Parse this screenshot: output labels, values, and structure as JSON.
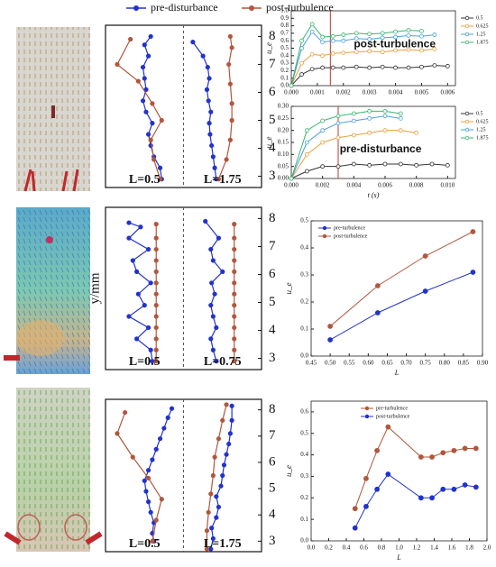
{
  "legend": [
    {
      "name": "pre-disturbance",
      "color": "#2233cc"
    },
    {
      "name": "post-turbulence",
      "color": "#b0573d"
    }
  ],
  "chart_data": [
    {
      "type": "profile",
      "ylim": [
        2.6,
        8.4
      ],
      "yticks": [
        3,
        4,
        5,
        6,
        7,
        8
      ],
      "subpanels": [
        {
          "label": "L=0.5",
          "series": [
            {
              "color": "#2233cc",
              "x": [
                0.72,
                0.7,
                0.62,
                0.58,
                0.55,
                0.6,
                0.52,
                0.48,
                0.52,
                0.5,
                0.48,
                0.55,
                0.5,
                0.58
              ],
              "y": [
                2.9,
                3.3,
                3.7,
                4.1,
                4.5,
                4.9,
                5.3,
                5.7,
                6.1,
                6.5,
                6.9,
                7.3,
                7.7,
                8.0
              ]
            },
            {
              "color": "#b0573d",
              "x": [
                0.7,
                0.62,
                0.58,
                0.72,
                0.6,
                0.42,
                0.15,
                0.32
              ],
              "y": [
                2.9,
                3.6,
                4.3,
                5.0,
                5.6,
                6.4,
                7.0,
                7.9
              ]
            }
          ]
        },
        {
          "label": "L=1.75",
          "series": [
            {
              "color": "#2233cc",
              "x": [
                0.42,
                0.4,
                0.38,
                0.36,
                0.34,
                0.33,
                0.35,
                0.32,
                0.3,
                0.33,
                0.31,
                0.25,
                0.12
              ],
              "y": [
                2.9,
                3.3,
                3.7,
                4.1,
                4.5,
                4.9,
                5.3,
                5.7,
                6.1,
                6.5,
                6.9,
                7.3,
                7.8
              ]
            },
            {
              "color": "#b0573d",
              "x": [
                0.45,
                0.55,
                0.6,
                0.62,
                0.62,
                0.6,
                0.58,
                0.62,
                0.6
              ],
              "y": [
                2.9,
                3.6,
                4.3,
                5.0,
                5.6,
                6.3,
                7.0,
                7.6,
                8.0
              ]
            }
          ]
        }
      ]
    },
    {
      "type": "line",
      "annotation": "post-turbulence",
      "ylabel": "u_e",
      "marker_x": 0.0015,
      "marker_color": "#c0392b",
      "xlim": [
        0,
        0.0063
      ],
      "ylim": [
        0,
        1.0
      ],
      "xticks": [
        {
          "value": 0,
          "label": "0.000"
        },
        0.001,
        0.002,
        0.003,
        0.004,
        0.005,
        0.006
      ],
      "yticks": [
        {
          "value": 0,
          "label": "0.0"
        },
        0.1,
        0.2,
        0.3,
        0.4,
        0.5,
        0.6,
        0.7,
        0.8,
        0.9,
        {
          "value": 1,
          "label": "1.0"
        }
      ],
      "x": [
        0,
        0.0004,
        0.0008,
        0.0012,
        0.0016,
        0.002,
        0.0025,
        0.003,
        0.0035,
        0.004,
        0.0045,
        0.005,
        0.0055,
        0.006
      ],
      "series": [
        {
          "name": "0.5",
          "color": "#333333",
          "values": [
            0,
            0.15,
            0.22,
            0.24,
            0.24,
            0.24,
            0.25,
            0.24,
            0.25,
            0.24,
            0.24,
            0.25,
            0.27,
            0.26
          ]
        },
        {
          "name": "0.625",
          "color": "#e8a040",
          "values": [
            0,
            0.3,
            0.42,
            0.4,
            0.43,
            0.44,
            0.45,
            0.46,
            0.45,
            0.47,
            0.48,
            0.47,
            0.49,
            null
          ]
        },
        {
          "name": "1.25",
          "color": "#4aa0e0",
          "values": [
            0,
            0.5,
            0.72,
            0.58,
            0.6,
            0.6,
            0.63,
            0.62,
            0.64,
            0.65,
            0.67,
            0.66,
            0.68,
            null
          ]
        },
        {
          "name": "1.875",
          "color": "#3cb371",
          "values": [
            0,
            0.6,
            0.82,
            0.65,
            0.66,
            0.68,
            0.7,
            0.69,
            0.7,
            0.72,
            0.74,
            0.73,
            null,
            null
          ]
        }
      ]
    },
    {
      "type": "line",
      "annotation": "pre-disturbance",
      "ylabel": "u_e",
      "xlabel": "t (s)",
      "marker_x": 0.003,
      "marker_color": "#c0392b",
      "xlim": [
        0,
        0.0105
      ],
      "ylim": [
        0,
        0.3
      ],
      "xticks": [
        {
          "value": 0,
          "label": "0.000"
        },
        0.002,
        0.004,
        0.006,
        0.008,
        {
          "value": 0.01,
          "label": "0.010"
        }
      ],
      "yticks": [
        {
          "value": 0,
          "label": "0.00"
        },
        0.05,
        {
          "value": 0.1,
          "label": "0.10"
        },
        0.15,
        {
          "value": 0.2,
          "label": "0.20"
        },
        0.25,
        {
          "value": 0.3,
          "label": "0.30"
        }
      ],
      "x": [
        0,
        0.001,
        0.002,
        0.003,
        0.004,
        0.005,
        0.006,
        0.007,
        0.008,
        0.009,
        0.01
      ],
      "series": [
        {
          "name": "0.5",
          "color": "#333333",
          "values": [
            0,
            0.03,
            0.05,
            0.05,
            0.06,
            0.055,
            0.06,
            0.06,
            0.055,
            0.06,
            0.055
          ]
        },
        {
          "name": "0.625",
          "color": "#e8a040",
          "values": [
            0,
            0.1,
            0.15,
            0.17,
            0.18,
            0.19,
            0.2,
            0.2,
            0.19,
            null,
            null
          ]
        },
        {
          "name": "1.25",
          "color": "#4aa0e0",
          "values": [
            0,
            0.15,
            0.2,
            0.23,
            0.24,
            0.25,
            0.26,
            0.25,
            null,
            null,
            null
          ]
        },
        {
          "name": "1.875",
          "color": "#3cb371",
          "values": [
            0,
            0.2,
            0.24,
            0.26,
            0.27,
            0.28,
            0.28,
            0.27,
            null,
            null,
            null
          ]
        }
      ]
    },
    {
      "type": "profile",
      "ylabel": "y/mm",
      "ylim": [
        2.6,
        8.4
      ],
      "yticks": [
        3,
        4,
        5,
        6,
        7,
        8
      ],
      "subpanels": [
        {
          "label": "L=0.5",
          "series": [
            {
              "color": "#2233cc",
              "x": [
                0.6,
                0.58,
                0.4,
                0.55,
                0.3,
                0.5,
                0.42,
                0.58,
                0.4,
                0.35,
                0.55,
                0.3,
                0.45,
                0.3
              ],
              "y": [
                2.9,
                3.3,
                3.7,
                4.1,
                4.5,
                4.9,
                5.3,
                5.7,
                6.1,
                6.5,
                6.9,
                7.3,
                7.7,
                7.85
              ]
            },
            {
              "color": "#b0573d",
              "x": [
                0.65,
                0.65,
                0.65,
                0.65,
                0.65,
                0.65,
                0.65,
                0.65,
                0.65,
                0.65,
                0.65,
                0.65,
                0.65
              ],
              "y": [
                2.9,
                3.3,
                3.7,
                4.1,
                4.5,
                4.9,
                5.3,
                5.7,
                6.1,
                6.5,
                6.9,
                7.3,
                7.8
              ]
            }
          ]
        },
        {
          "label": "L=0.75",
          "series": [
            {
              "color": "#2233cc",
              "x": [
                0.42,
                0.38,
                0.35,
                0.42,
                0.38,
                0.35,
                0.4,
                0.36,
                0.5,
                0.38,
                0.35,
                0.45,
                0.28
              ],
              "y": [
                2.9,
                3.3,
                3.7,
                4.1,
                4.5,
                4.9,
                5.3,
                5.7,
                6.1,
                6.5,
                6.9,
                7.3,
                7.9
              ]
            },
            {
              "color": "#b0573d",
              "x": [
                0.65,
                0.65,
                0.65,
                0.65,
                0.65,
                0.65,
                0.65,
                0.65,
                0.65,
                0.65,
                0.65,
                0.65,
                0.65
              ],
              "y": [
                2.9,
                3.3,
                3.7,
                4.1,
                4.5,
                4.9,
                5.3,
                5.7,
                6.1,
                6.5,
                6.9,
                7.3,
                7.8
              ]
            }
          ]
        }
      ]
    },
    {
      "type": "line",
      "xlabel": "L",
      "ylabel": "u_e",
      "legend": "upper left",
      "xlim": [
        0.45,
        0.9
      ],
      "ylim": [
        0,
        0.5
      ],
      "xticks": [
        0.45,
        {
          "value": 0.5,
          "label": "0.50"
        },
        0.55,
        {
          "value": 0.6,
          "label": "0.60"
        },
        0.65,
        {
          "value": 0.7,
          "label": "0.70"
        },
        0.75,
        {
          "value": 0.8,
          "label": "0.80"
        },
        0.85,
        {
          "value": 0.9,
          "label": "0.90"
        }
      ],
      "yticks": [
        {
          "value": 0,
          "label": "0.0"
        },
        0.1,
        0.2,
        0.3,
        0.4,
        0.5
      ],
      "x": [
        0.5,
        0.625,
        0.75,
        0.875
      ],
      "series": [
        {
          "name": "pre-turbulence",
          "color": "#2233cc",
          "values": [
            0.06,
            0.16,
            0.24,
            0.31
          ]
        },
        {
          "name": "post-turbulence",
          "color": "#b0573d",
          "values": [
            0.11,
            0.26,
            0.37,
            0.46
          ]
        }
      ]
    },
    {
      "type": "profile",
      "ylim": [
        2.6,
        8.4
      ],
      "yticks": [
        3,
        4,
        5,
        6,
        7,
        8
      ],
      "subpanels": [
        {
          "label": "L=0.5",
          "series": [
            {
              "color": "#2233cc",
              "x": [
                0.62,
                0.6,
                0.62,
                0.58,
                0.55,
                0.52,
                0.5,
                0.55,
                0.6,
                0.65,
                0.7,
                0.75,
                0.8,
                0.85
              ],
              "y": [
                3.0,
                3.3,
                3.7,
                4.1,
                4.5,
                4.9,
                5.3,
                5.7,
                6.1,
                6.5,
                6.9,
                7.3,
                7.7,
                8.05
              ]
            },
            {
              "color": "#b0573d",
              "x": [
                0.6,
                0.65,
                0.72,
                0.55,
                0.35,
                0.15,
                0.25
              ],
              "y": [
                3.0,
                3.8,
                4.6,
                5.4,
                6.2,
                7.1,
                7.9
              ]
            }
          ]
        },
        {
          "label": "L=1.75",
          "series": [
            {
              "color": "#2233cc",
              "x": [
                0.35,
                0.38,
                0.36,
                0.42,
                0.45,
                0.42,
                0.48,
                0.5,
                0.52,
                0.55,
                0.58,
                0.6,
                0.62,
                0.62
              ],
              "y": [
                2.7,
                3.1,
                3.5,
                3.9,
                4.3,
                4.7,
                5.1,
                5.5,
                5.9,
                6.3,
                6.7,
                7.1,
                7.6,
                8.15
              ]
            },
            {
              "color": "#b0573d",
              "x": [
                0.3,
                0.3,
                0.32,
                0.35,
                0.38,
                0.4,
                0.45,
                0.5,
                0.55
              ],
              "y": [
                2.7,
                3.4,
                4.1,
                4.8,
                5.5,
                6.2,
                6.9,
                7.6,
                8.2
              ]
            }
          ]
        }
      ]
    },
    {
      "type": "line",
      "xlabel": "L",
      "ylabel": "u_e",
      "legend": "upper center",
      "xlim": [
        0,
        2.0
      ],
      "ylim": [
        0,
        0.65
      ],
      "xticks": [
        {
          "value": 0,
          "label": "0.0"
        },
        0.2,
        0.4,
        0.6,
        0.8,
        {
          "value": 1,
          "label": "1.0"
        },
        1.2,
        1.4,
        1.6,
        1.8,
        {
          "value": 2,
          "label": "2.0"
        }
      ],
      "yticks": [
        {
          "value": 0,
          "label": "0.0"
        },
        0.1,
        0.2,
        0.3,
        0.4,
        0.5,
        0.6
      ],
      "x": [
        0.5,
        0.625,
        0.75,
        0.875,
        1.25,
        1.375,
        1.5,
        1.625,
        1.75,
        1.875
      ],
      "series": [
        {
          "name": "pre-turbulence",
          "color": "#b0573d",
          "values": [
            0.15,
            0.29,
            0.42,
            0.53,
            0.39,
            0.39,
            0.41,
            0.42,
            0.43,
            0.43
          ]
        },
        {
          "name": "post-turbulence",
          "color": "#2233cc",
          "values": [
            0.06,
            0.16,
            0.24,
            0.31,
            0.2,
            0.2,
            0.24,
            0.24,
            0.26,
            0.25
          ]
        }
      ]
    }
  ]
}
